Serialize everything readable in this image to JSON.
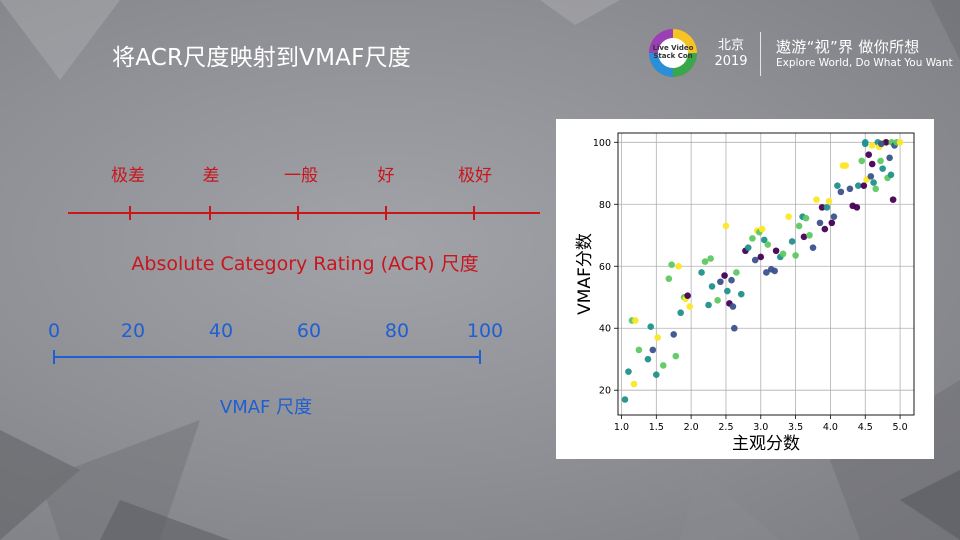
{
  "slide": {
    "title": "将ACR尺度映射到VMAF尺度",
    "logo": {
      "text": "Live Video Stack Con",
      "year_city": "北京",
      "year": "2019"
    },
    "slogan": {
      "cn": "遨游“视”界 做你所想",
      "en": "Explore World, Do What You Want"
    }
  },
  "acr_scale": {
    "labels": [
      "极差",
      "差",
      "一般",
      "好",
      "极好"
    ],
    "name": "Absolute Category Rating (ACR) 尺度",
    "color": "#c8161d"
  },
  "vmaf_scale": {
    "ticks": [
      "0",
      "20",
      "40",
      "60",
      "80",
      "100"
    ],
    "name": "VMAF 尺度",
    "color": "#1f5fd1"
  },
  "chart_data": {
    "type": "scatter",
    "xlabel": "主观分数",
    "ylabel": "VMAF分数",
    "xlim": [
      0.95,
      5.2
    ],
    "ylim": [
      12,
      103
    ],
    "xticks": [
      "1.0",
      "1.5",
      "2.0",
      "2.5",
      "3.0",
      "3.5",
      "4.0",
      "4.5",
      "5.0"
    ],
    "yticks": [
      "20",
      "40",
      "60",
      "80",
      "100"
    ],
    "grid": true,
    "colors": [
      "#440154",
      "#3b528b",
      "#21918c",
      "#5ec962",
      "#fde725"
    ],
    "points": [
      [
        1.05,
        17,
        2
      ],
      [
        1.1,
        26,
        2
      ],
      [
        1.18,
        22,
        4
      ],
      [
        1.15,
        42.5,
        3
      ],
      [
        1.2,
        42.5,
        4
      ],
      [
        1.25,
        33,
        3
      ],
      [
        1.38,
        30,
        2
      ],
      [
        1.42,
        40.5,
        2
      ],
      [
        1.45,
        33,
        1
      ],
      [
        1.5,
        25,
        2
      ],
      [
        1.52,
        37,
        4
      ],
      [
        1.6,
        28,
        3
      ],
      [
        1.68,
        56,
        3
      ],
      [
        1.72,
        60.5,
        3
      ],
      [
        1.75,
        38,
        1
      ],
      [
        1.78,
        31,
        3
      ],
      [
        1.82,
        60,
        4
      ],
      [
        1.85,
        45,
        2
      ],
      [
        1.9,
        50,
        3
      ],
      [
        1.92,
        49.5,
        4
      ],
      [
        1.95,
        50.5,
        0
      ],
      [
        1.98,
        47,
        4
      ],
      [
        2.15,
        58,
        2
      ],
      [
        2.2,
        61.5,
        3
      ],
      [
        2.28,
        62.5,
        3
      ],
      [
        2.25,
        47.5,
        2
      ],
      [
        2.3,
        53.5,
        2
      ],
      [
        2.38,
        49,
        3
      ],
      [
        2.42,
        55,
        1
      ],
      [
        2.48,
        57,
        0
      ],
      [
        2.5,
        73,
        4
      ],
      [
        2.52,
        52,
        2
      ],
      [
        2.55,
        48,
        0
      ],
      [
        2.58,
        55.5,
        1
      ],
      [
        2.6,
        47,
        1
      ],
      [
        2.62,
        40,
        1
      ],
      [
        2.65,
        58,
        3
      ],
      [
        2.72,
        51,
        2
      ],
      [
        2.78,
        65,
        0
      ],
      [
        2.82,
        66,
        2
      ],
      [
        2.88,
        69,
        3
      ],
      [
        2.92,
        62,
        1
      ],
      [
        2.95,
        71.5,
        4
      ],
      [
        2.98,
        71,
        3
      ],
      [
        3.0,
        63,
        0
      ],
      [
        3.02,
        72,
        4
      ],
      [
        3.05,
        68.5,
        2
      ],
      [
        3.08,
        58,
        1
      ],
      [
        3.1,
        67,
        3
      ],
      [
        3.15,
        59,
        1
      ],
      [
        3.2,
        58.5,
        1
      ],
      [
        3.22,
        65,
        0
      ],
      [
        3.28,
        63,
        2
      ],
      [
        3.32,
        64,
        3
      ],
      [
        3.4,
        76,
        4
      ],
      [
        3.45,
        68,
        2
      ],
      [
        3.5,
        63.5,
        3
      ],
      [
        3.55,
        73,
        3
      ],
      [
        3.6,
        76,
        2
      ],
      [
        3.65,
        75.5,
        3
      ],
      [
        3.62,
        69.5,
        0
      ],
      [
        3.7,
        70,
        3
      ],
      [
        3.75,
        66,
        1
      ],
      [
        3.8,
        81.5,
        4
      ],
      [
        3.85,
        74,
        1
      ],
      [
        3.88,
        79,
        0
      ],
      [
        3.92,
        72,
        0
      ],
      [
        3.95,
        79,
        2
      ],
      [
        3.98,
        81,
        4
      ],
      [
        4.02,
        74,
        0
      ],
      [
        4.05,
        76,
        1
      ],
      [
        4.1,
        86,
        2
      ],
      [
        4.15,
        84,
        1
      ],
      [
        4.18,
        92.5,
        4
      ],
      [
        4.22,
        92.5,
        4
      ],
      [
        4.28,
        85,
        1
      ],
      [
        4.32,
        79.5,
        0
      ],
      [
        4.38,
        79,
        0
      ],
      [
        4.4,
        86,
        2
      ],
      [
        4.45,
        94,
        3
      ],
      [
        4.48,
        86,
        0
      ],
      [
        4.5,
        100,
        2
      ],
      [
        4.52,
        88,
        4
      ],
      [
        4.55,
        96,
        0
      ],
      [
        4.58,
        89,
        1
      ],
      [
        4.6,
        93,
        0
      ],
      [
        4.62,
        87,
        2
      ],
      [
        4.65,
        85,
        3
      ],
      [
        4.68,
        100,
        2
      ],
      [
        4.7,
        98.5,
        4
      ],
      [
        4.72,
        94,
        3
      ],
      [
        4.75,
        91.5,
        2
      ],
      [
        4.78,
        100,
        4
      ],
      [
        4.8,
        100,
        0
      ],
      [
        4.82,
        88.5,
        3
      ],
      [
        4.85,
        95,
        1
      ],
      [
        4.87,
        89.5,
        2
      ],
      [
        4.88,
        100,
        3
      ],
      [
        4.9,
        81.5,
        0
      ],
      [
        4.92,
        99,
        1
      ],
      [
        4.95,
        100,
        3
      ],
      [
        5.0,
        100,
        4
      ],
      [
        4.6,
        99,
        4
      ],
      [
        4.5,
        99.5,
        2
      ],
      [
        4.73,
        99.5,
        1
      ]
    ]
  }
}
